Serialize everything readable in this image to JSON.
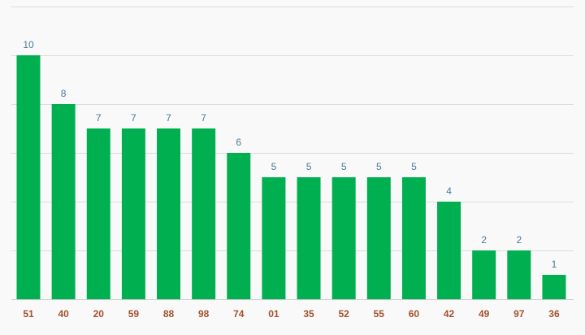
{
  "chart_data": {
    "type": "bar",
    "title": "",
    "xlabel": "",
    "ylabel": "",
    "categories": [
      "51",
      "40",
      "20",
      "59",
      "88",
      "98",
      "74",
      "01",
      "35",
      "52",
      "55",
      "60",
      "42",
      "49",
      "97",
      "36"
    ],
    "values": [
      10,
      8,
      7,
      7,
      7,
      7,
      6,
      5,
      5,
      5,
      5,
      5,
      4,
      2,
      2,
      1
    ],
    "ylim": [
      0,
      12
    ],
    "grid": true,
    "legend": "none",
    "colors": {
      "bar": "#00b050",
      "value_label": "#4a7a96",
      "tick_label": "#a0522d",
      "grid": "#dcdcdc",
      "axis": "#cccccc",
      "background": "#f9f9f9"
    }
  }
}
